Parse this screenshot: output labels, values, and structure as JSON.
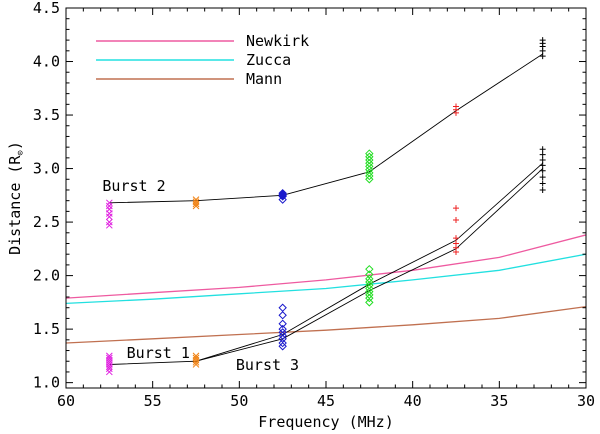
{
  "chart_data": {
    "type": "scatter",
    "title": "",
    "xlabel": "Frequency (MHz)",
    "ylabel_prefix": "Distance (R",
    "ylabel_sub": "⊙",
    "ylabel_suffix": ")",
    "xlim": [
      60,
      30
    ],
    "ylim": [
      0.95,
      4.5
    ],
    "xticks": [
      60,
      55,
      50,
      45,
      40,
      35,
      30
    ],
    "yticks": [
      1.0,
      1.5,
      2.0,
      2.5,
      3.0,
      3.5,
      4.0,
      4.5
    ],
    "ytick_labels": [
      "1.0",
      "1.5",
      "2.0",
      "2.5",
      "3.0",
      "3.5",
      "4.0",
      "4.5"
    ],
    "models": [
      {
        "name": "Newkirk",
        "color": "#ee5aa0",
        "points": [
          [
            60,
            1.79
          ],
          [
            55,
            1.84
          ],
          [
            50,
            1.89
          ],
          [
            45,
            1.96
          ],
          [
            40,
            2.05
          ],
          [
            35,
            2.17
          ],
          [
            30,
            2.38
          ]
        ]
      },
      {
        "name": "Zucca",
        "color": "#22e0e0",
        "points": [
          [
            60,
            1.74
          ],
          [
            55,
            1.78
          ],
          [
            50,
            1.83
          ],
          [
            45,
            1.88
          ],
          [
            40,
            1.96
          ],
          [
            35,
            2.05
          ],
          [
            30,
            2.2
          ]
        ]
      },
      {
        "name": "Mann",
        "color": "#c07050",
        "points": [
          [
            60,
            1.37
          ],
          [
            55,
            1.41
          ],
          [
            50,
            1.45
          ],
          [
            45,
            1.49
          ],
          [
            40,
            1.54
          ],
          [
            35,
            1.6
          ],
          [
            30,
            1.71
          ]
        ]
      }
    ],
    "scatter_groups": [
      {
        "freq": 57.5,
        "color": "#e020e0",
        "marker": "x",
        "values": [
          2.47,
          2.5,
          2.55,
          2.58,
          2.62,
          2.65,
          2.68
        ]
      },
      {
        "freq": 57.5,
        "color": "#e020e0",
        "marker": "x",
        "values": [
          1.1,
          1.13,
          1.15,
          1.17,
          1.19,
          1.21,
          1.23,
          1.25
        ]
      },
      {
        "freq": 52.5,
        "color": "#f08010",
        "marker": "x",
        "values": [
          2.65,
          2.67,
          2.69,
          2.71
        ]
      },
      {
        "freq": 52.5,
        "color": "#f08010",
        "marker": "x",
        "values": [
          1.17,
          1.19,
          1.21,
          1.23,
          1.25
        ]
      },
      {
        "freq": 47.5,
        "color": "#1a1acc",
        "marker": "diamond",
        "values": [
          2.71,
          2.74,
          2.75,
          2.76,
          2.77
        ]
      },
      {
        "freq": 47.5,
        "color": "#1a1acc",
        "marker": "diamond",
        "values": [
          1.34,
          1.37,
          1.41,
          1.44,
          1.47,
          1.5,
          1.55,
          1.63,
          1.7
        ]
      },
      {
        "freq": 42.5,
        "color": "#22dd22",
        "marker": "diamond",
        "values": [
          2.9,
          2.93,
          2.96,
          2.99,
          3.02,
          3.05,
          3.08,
          3.11,
          3.14
        ]
      },
      {
        "freq": 42.5,
        "color": "#22dd22",
        "marker": "diamond",
        "values": [
          1.75,
          1.79,
          1.82,
          1.85,
          1.88,
          1.91,
          1.94,
          1.97,
          2.01,
          2.06
        ]
      },
      {
        "freq": 37.5,
        "color": "#ee2020",
        "marker": "plus",
        "values": [
          3.52,
          3.55,
          3.58
        ]
      },
      {
        "freq": 37.5,
        "color": "#ee2020",
        "marker": "plus",
        "values": [
          2.22,
          2.26,
          2.3,
          2.35,
          2.52,
          2.63
        ]
      },
      {
        "freq": 32.5,
        "color": "#000000",
        "marker": "plus",
        "values": [
          4.05,
          4.1,
          4.14,
          4.17,
          4.2
        ]
      },
      {
        "freq": 32.5,
        "color": "#000000",
        "marker": "plus",
        "values": [
          2.8,
          2.86,
          2.92,
          2.98,
          3.03,
          3.08,
          3.13,
          3.18
        ]
      }
    ],
    "trend_lines": [
      {
        "name": "Burst 2",
        "points": [
          [
            57.5,
            2.68
          ],
          [
            52.5,
            2.7
          ],
          [
            47.5,
            2.75
          ],
          [
            42.5,
            2.97
          ],
          [
            37.5,
            3.54
          ],
          [
            32.5,
            4.07
          ]
        ]
      },
      {
        "name": "Burst 1",
        "points": [
          [
            57.5,
            1.17
          ],
          [
            52.5,
            1.2
          ],
          [
            47.5,
            1.45
          ],
          [
            42.5,
            1.92
          ],
          [
            37.5,
            2.33
          ],
          [
            32.5,
            3.05
          ]
        ]
      },
      {
        "name": "Burst 3",
        "points": [
          [
            52.5,
            1.2
          ],
          [
            47.5,
            1.41
          ],
          [
            42.5,
            1.86
          ],
          [
            37.5,
            2.25
          ],
          [
            32.5,
            3.0
          ]
        ]
      }
    ],
    "annotations": [
      {
        "text": "Burst 2",
        "x": 57.9,
        "y": 2.79
      },
      {
        "text": "Burst 1",
        "x": 56.5,
        "y": 1.23
      },
      {
        "text": "Burst 3",
        "x": 50.2,
        "y": 1.12
      }
    ],
    "legend": {
      "position": "top-left",
      "entries": [
        "Newkirk",
        "Zucca",
        "Mann"
      ]
    }
  }
}
